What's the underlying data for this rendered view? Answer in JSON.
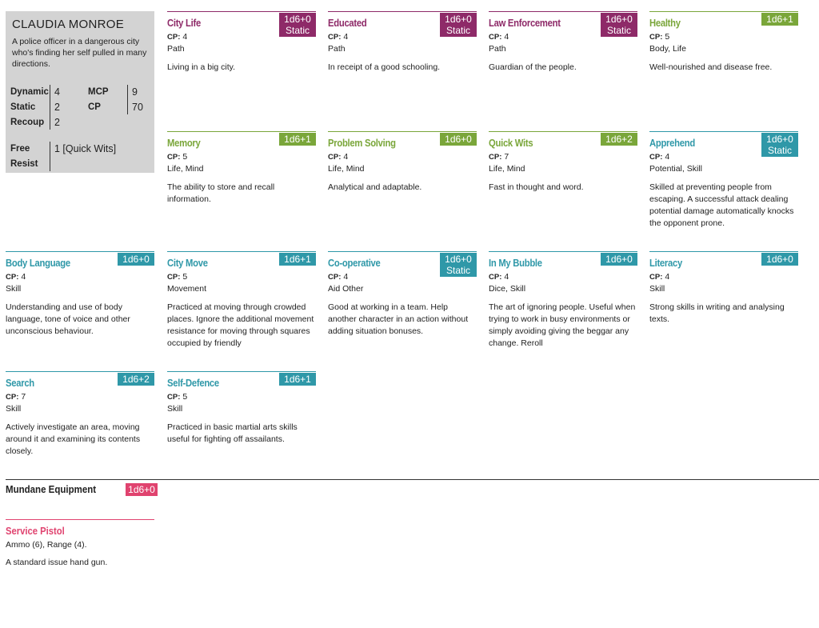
{
  "character": {
    "name": "CLAUDIA MONROE",
    "description": "A police officer in a dangerous city who's finding her self pulled in many directions.",
    "stats": {
      "dynamic_label": "Dynamic",
      "dynamic": "4",
      "static_label": "Static",
      "static": "2",
      "recoup_label": "Recoup",
      "recoup": "2",
      "mcp_label": "MCP",
      "mcp": "9",
      "cp_label": "CP",
      "cp": "70",
      "free_label": "Free",
      "resist_label": "Resist",
      "free_resist": "1 [Quick Wits]"
    }
  },
  "cp_label": "CP:",
  "cards": [
    {
      "title": "City Life",
      "badge": "1d6+0",
      "badge2": "Static",
      "cp": "4",
      "tags": "Path",
      "desc": "Living in a big city.",
      "color": "#8e2a68"
    },
    {
      "title": "Educated",
      "badge": "1d6+0",
      "badge2": "Static",
      "cp": "4",
      "tags": "Path",
      "desc": "In receipt of a good schooling.",
      "color": "#8e2a68"
    },
    {
      "title": "Law Enforcement",
      "badge": "1d6+0",
      "badge2": "Static",
      "cp": "4",
      "tags": "Path",
      "desc": "Guardian of the people.",
      "color": "#8e2a68"
    },
    {
      "title": "Healthy",
      "badge": "1d6+1",
      "badge2": "",
      "cp": "5",
      "tags": "Body, Life",
      "desc": "Well-nourished and disease free.",
      "color": "#7aa63a"
    },
    {
      "title": "Memory",
      "badge": "1d6+1",
      "badge2": "",
      "cp": "5",
      "tags": "Life, Mind",
      "desc": "The ability to store and recall information.",
      "color": "#7aa63a"
    },
    {
      "title": "Problem Solving",
      "badge": "1d6+0",
      "badge2": "",
      "cp": "4",
      "tags": "Life, Mind",
      "desc": "Analytical and adaptable.",
      "color": "#7aa63a"
    },
    {
      "title": "Quick Wits",
      "badge": "1d6+2",
      "badge2": "",
      "cp": "7",
      "tags": "Life, Mind",
      "desc": "Fast in thought and word.",
      "color": "#7aa63a"
    },
    {
      "title": "Apprehend",
      "badge": "1d6+0",
      "badge2": "Static",
      "cp": "4",
      "tags": "Potential, Skill",
      "desc": "Skilled at preventing people from escaping. A successful attack dealing potential damage automatically knocks the opponent prone.",
      "color": "#2f98a8"
    },
    {
      "title": "Body Language",
      "badge": "1d6+0",
      "badge2": "",
      "cp": "4",
      "tags": "Skill",
      "desc": "Understanding and use of body language, tone of voice and other unconscious behaviour.",
      "color": "#2f98a8"
    },
    {
      "title": "City Move",
      "badge": "1d6+1",
      "badge2": "",
      "cp": "5",
      "tags": "Movement",
      "desc": "Practiced at moving through crowded places. Ignore the additional movement resistance for moving through squares occupied by friendly",
      "color": "#2f98a8"
    },
    {
      "title": "Co-operative",
      "badge": "1d6+0",
      "badge2": "Static",
      "cp": "4",
      "tags": "Aid Other",
      "desc": "Good at working in a team. Help another character in an action without adding situation bonuses.",
      "color": "#2f98a8"
    },
    {
      "title": "In My Bubble",
      "badge": "1d6+0",
      "badge2": "",
      "cp": "4",
      "tags": "Dice, Skill",
      "desc": "The art of ignoring people. Useful when trying to work in busy environments or simply avoiding giving the beggar any change. Reroll",
      "color": "#2f98a8"
    },
    {
      "title": "Literacy",
      "badge": "1d6+0",
      "badge2": "",
      "cp": "4",
      "tags": "Skill",
      "desc": "Strong skills in writing and analysing texts.",
      "color": "#2f98a8"
    },
    {
      "title": "Search",
      "badge": "1d6+2",
      "badge2": "",
      "cp": "7",
      "tags": "Skill",
      "desc": "Actively investigate an area, moving around it and examining its contents closely.",
      "color": "#2f98a8"
    },
    {
      "title": "Self-Defence",
      "badge": "1d6+1",
      "badge2": "",
      "cp": "5",
      "tags": "Skill",
      "desc": "Practiced in basic martial arts skills useful for fighting off assailants.",
      "color": "#2f98a8"
    }
  ],
  "equipment": {
    "title": "Mundane Equipment",
    "badge": "1d6+0",
    "items": [
      {
        "name": "Service Pistol",
        "props": "Ammo (6), Range (4).",
        "desc": "A standard issue hand gun."
      }
    ]
  }
}
